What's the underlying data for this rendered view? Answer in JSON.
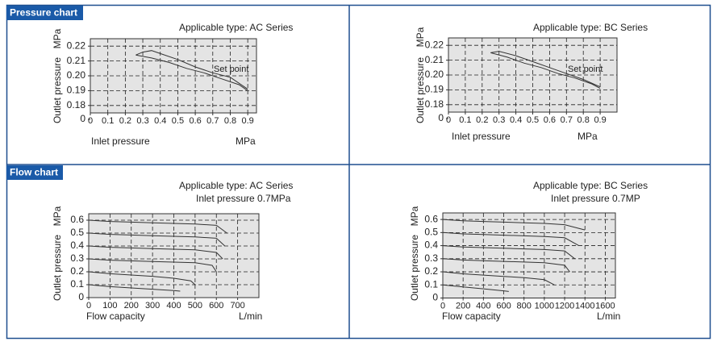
{
  "headers": [
    "Pressure chart",
    "Flow chart"
  ],
  "chart_data": [
    {
      "type": "line",
      "title": "Applicable type: AC Series",
      "annotation": "Set point",
      "xlabel": "Inlet pressure",
      "xunit": "MPa",
      "ylabel": "Outlet pressure",
      "yunit": "MPa",
      "xlim": [
        0,
        0.95
      ],
      "ylim": [
        0.175,
        0.225
      ],
      "xticks": [
        0,
        0.1,
        0.2,
        0.3,
        0.4,
        0.5,
        0.6,
        0.7,
        0.8,
        0.9
      ],
      "yticks": [
        0,
        0.18,
        0.19,
        {
          "value": 0.2,
          "label": "0.20"
        },
        0.21,
        0.22
      ],
      "grid": true,
      "series": [
        {
          "color": "#333333",
          "x": [
            0.26,
            0.3,
            0.35,
            0.4,
            0.5,
            0.6,
            0.7,
            0.8,
            0.9
          ],
          "values": [
            0.214,
            0.216,
            0.217,
            0.215,
            0.211,
            0.206,
            0.202,
            0.199,
            0.191
          ]
        },
        {
          "color": "#333333",
          "x": [
            0.26,
            0.35,
            0.45,
            0.55,
            0.65,
            0.75,
            0.85,
            0.9
          ],
          "values": [
            0.214,
            0.212,
            0.209,
            0.205,
            0.202,
            0.198,
            0.194,
            0.19
          ]
        }
      ]
    },
    {
      "type": "line",
      "title": "Applicable type: BC Series",
      "annotation": "Set point",
      "xlabel": "Inlet pressure",
      "xunit": "MPa",
      "ylabel": "Outlet pressure",
      "yunit": "MPa",
      "xlim": [
        0,
        1
      ],
      "ylim": [
        0.175,
        0.225
      ],
      "xticks": [
        0,
        0.1,
        0.2,
        0.3,
        0.4,
        0.5,
        0.6,
        0.7,
        0.8,
        0.9
      ],
      "yticks": [
        0,
        0.18,
        0.19,
        {
          "value": 0.2,
          "label": "0.20"
        },
        0.21,
        0.22
      ],
      "grid": true,
      "series": [
        {
          "color": "#333333",
          "x": [
            0.25,
            0.3,
            0.4,
            0.5,
            0.6,
            0.7,
            0.8,
            0.9
          ],
          "values": [
            0.215,
            0.216,
            0.213,
            0.209,
            0.205,
            0.201,
            0.197,
            0.192
          ]
        },
        {
          "color": "#333333",
          "x": [
            0.25,
            0.35,
            0.45,
            0.55,
            0.65,
            0.75,
            0.85,
            0.9
          ],
          "values": [
            0.215,
            0.212,
            0.208,
            0.205,
            0.201,
            0.198,
            0.194,
            0.191
          ]
        }
      ]
    },
    {
      "type": "line",
      "title": "Applicable type: AC Series",
      "subtitle": "Inlet pressure  0.7MPa",
      "xlabel": "Flow capacity",
      "xunit": "L/min",
      "ylabel": "Outlet pressure",
      "yunit": "MPa",
      "xlim": [
        0,
        800
      ],
      "ylim": [
        0,
        0.65
      ],
      "xticks": [
        0,
        100,
        200,
        300,
        400,
        500,
        600,
        700
      ],
      "yticks": [
        0,
        0.1,
        0.2,
        0.3,
        0.4,
        0.5,
        0.6
      ],
      "grid": true,
      "series": [
        {
          "color": "#333333",
          "x": [
            0,
            100,
            200,
            300,
            400,
            500,
            600,
            650
          ],
          "values": [
            0.6,
            0.59,
            0.585,
            0.58,
            0.575,
            0.57,
            0.56,
            0.5
          ]
        },
        {
          "color": "#333333",
          "x": [
            0,
            100,
            200,
            300,
            400,
            500,
            600,
            640
          ],
          "values": [
            0.5,
            0.49,
            0.485,
            0.48,
            0.475,
            0.47,
            0.46,
            0.4
          ]
        },
        {
          "color": "#333333",
          "x": [
            0,
            100,
            200,
            300,
            400,
            500,
            600,
            630
          ],
          "values": [
            0.4,
            0.39,
            0.385,
            0.38,
            0.375,
            0.37,
            0.35,
            0.3
          ]
        },
        {
          "color": "#333333",
          "x": [
            0,
            100,
            200,
            300,
            400,
            500,
            580,
            600
          ],
          "values": [
            0.3,
            0.29,
            0.285,
            0.28,
            0.275,
            0.27,
            0.25,
            0.2
          ]
        },
        {
          "color": "#333333",
          "x": [
            0,
            100,
            200,
            300,
            400,
            480,
            500
          ],
          "values": [
            0.2,
            0.185,
            0.175,
            0.165,
            0.15,
            0.13,
            0.1
          ]
        },
        {
          "color": "#333333",
          "x": [
            0,
            100,
            200,
            300,
            400,
            430
          ],
          "values": [
            0.1,
            0.085,
            0.075,
            0.065,
            0.055,
            0.05
          ]
        }
      ]
    },
    {
      "type": "line",
      "title": "Applicable type: BC Series",
      "subtitle": "Inlet pressure  0.7MP",
      "xlabel": "Flow capacity",
      "xunit": "L/min",
      "ylabel": "Outlet pressure",
      "yunit": "MPa",
      "xlim": [
        0,
        1700
      ],
      "ylim": [
        0,
        0.65
      ],
      "xticks": [
        0,
        200,
        400,
        600,
        800,
        1000,
        1200,
        1400,
        1600
      ],
      "yticks": [
        0,
        0.1,
        0.2,
        0.3,
        0.4,
        0.5,
        0.6
      ],
      "grid": true,
      "series": [
        {
          "color": "#333333",
          "x": [
            0,
            200,
            400,
            600,
            800,
            1000,
            1200,
            1400
          ],
          "values": [
            0.6,
            0.59,
            0.585,
            0.58,
            0.575,
            0.57,
            0.56,
            0.52
          ]
        },
        {
          "color": "#333333",
          "x": [
            0,
            200,
            400,
            600,
            800,
            1000,
            1200,
            1340
          ],
          "values": [
            0.5,
            0.49,
            0.485,
            0.48,
            0.475,
            0.47,
            0.46,
            0.4
          ]
        },
        {
          "color": "#333333",
          "x": [
            0,
            200,
            400,
            600,
            800,
            1000,
            1200,
            1300
          ],
          "values": [
            0.4,
            0.39,
            0.385,
            0.38,
            0.375,
            0.37,
            0.36,
            0.3
          ]
        },
        {
          "color": "#333333",
          "x": [
            0,
            200,
            400,
            600,
            800,
            1000,
            1200,
            1250
          ],
          "values": [
            0.3,
            0.29,
            0.285,
            0.28,
            0.275,
            0.27,
            0.25,
            0.2
          ]
        },
        {
          "color": "#333333",
          "x": [
            0,
            200,
            400,
            600,
            800,
            1000,
            1100
          ],
          "values": [
            0.2,
            0.185,
            0.175,
            0.165,
            0.155,
            0.14,
            0.1
          ]
        },
        {
          "color": "#333333",
          "x": [
            0,
            200,
            400,
            600,
            650
          ],
          "values": [
            0.1,
            0.085,
            0.07,
            0.055,
            0.05
          ]
        }
      ]
    }
  ]
}
